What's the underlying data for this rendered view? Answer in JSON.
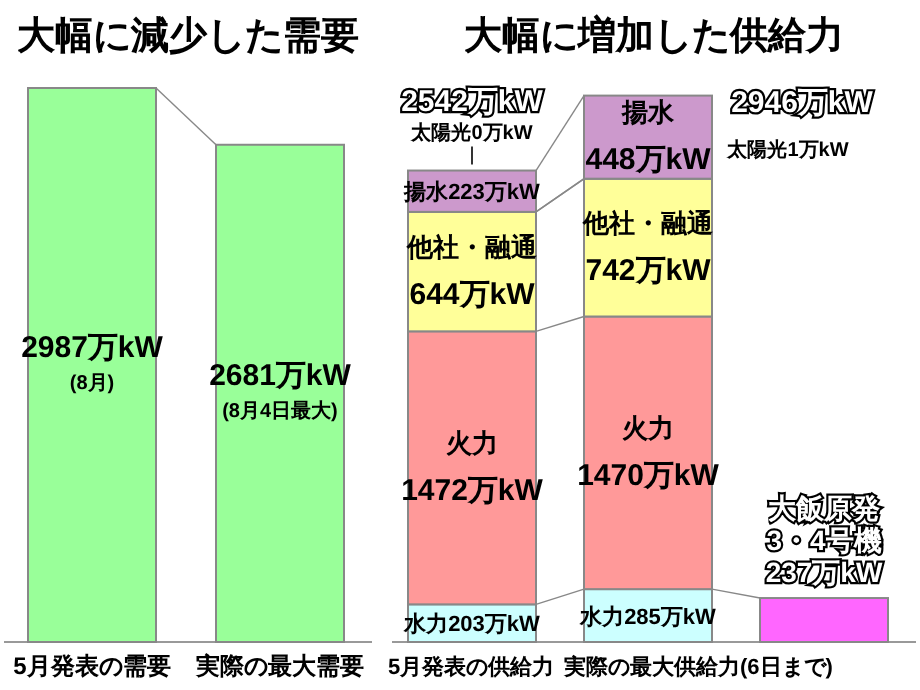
{
  "chart_data": [
    {
      "type": "bar",
      "title": "大幅に減少した需要",
      "categories": [
        "5月発表の需要",
        "実際の最大需要"
      ],
      "values": [
        2987,
        2681
      ],
      "color": "#99ff99",
      "value_labels": [
        "2987万kW\n(8月)",
        "2681万kW\n(8月4日最大)"
      ]
    },
    {
      "type": "bar",
      "title": "大幅に増加した供給力",
      "stacked": true,
      "categories": [
        "5月発表の供給力",
        "実際の最大供給力(6日まで)",
        null
      ],
      "totals": [
        "2542万kW",
        "2946万kW",
        null
      ],
      "series": [
        {
          "name": "水力",
          "color": "#ccffff",
          "values": [
            203,
            285,
            null
          ],
          "value_labels": [
            "203万kW",
            "285万kW",
            null
          ]
        },
        {
          "name": "火力",
          "color": "#ff9999",
          "values": [
            1472,
            1470,
            null
          ],
          "value_labels": [
            "1472万kW",
            "1470万kW",
            null
          ]
        },
        {
          "name": "他社・融通",
          "color": "#ffff99",
          "values": [
            644,
            742,
            null
          ],
          "value_labels": [
            "644万kW",
            "742万kW",
            null
          ]
        },
        {
          "name": "太陽光",
          "values": [
            0,
            1,
            null
          ],
          "value_labels": [
            "0万kW",
            "1万kW",
            null
          ]
        },
        {
          "name": "揚水",
          "color": "#cc99cc",
          "values": [
            223,
            448,
            null
          ],
          "value_labels": [
            "223万kW",
            "448万kW",
            null
          ]
        },
        {
          "name": "大飯原発\n3・4号機",
          "color": "#ff66ff",
          "values": [
            null,
            null,
            237
          ],
          "value_labels": [
            null,
            null,
            "237万kW"
          ]
        }
      ]
    }
  ]
}
